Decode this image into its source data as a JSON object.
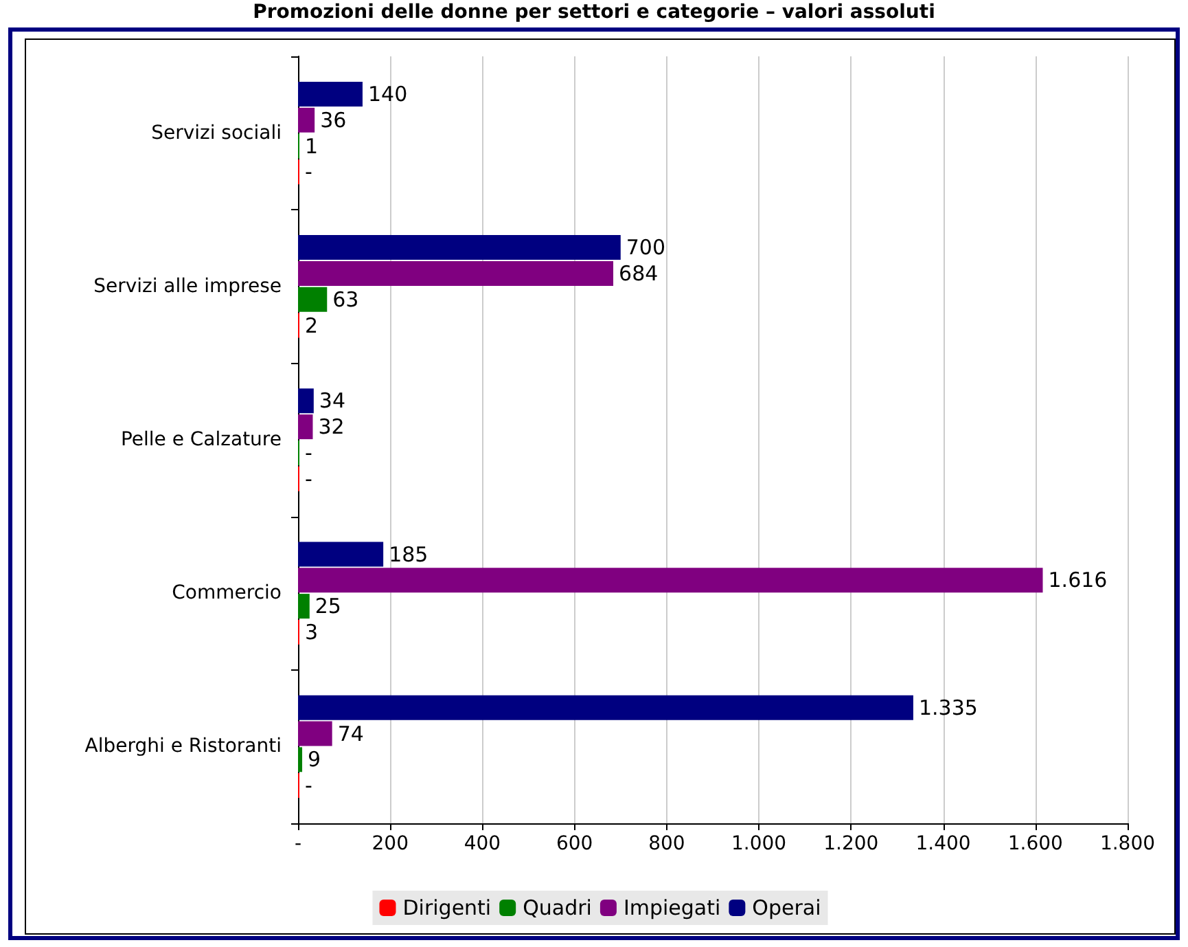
{
  "chart_data": {
    "type": "bar",
    "orientation": "horizontal",
    "title": "Promozioni delle donne per settori e categorie – valori assoluti",
    "categories": [
      "Servizi sociali",
      "Servizi alle imprese",
      "Pelle e Calzature",
      "Commercio",
      "Alberghi e Ristoranti"
    ],
    "series": [
      {
        "name": "Operai",
        "color": "#000080",
        "values": [
          140,
          700,
          34,
          185,
          1335
        ],
        "value_labels": [
          "140",
          "700",
          "34",
          "185",
          "1.335"
        ]
      },
      {
        "name": "Impiegati",
        "color": "#800080",
        "values": [
          36,
          684,
          32,
          1616,
          74
        ],
        "value_labels": [
          "36",
          "684",
          "32",
          "1.616",
          "74"
        ]
      },
      {
        "name": "Quadri",
        "color": "#008000",
        "values": [
          1,
          63,
          0,
          25,
          9
        ],
        "value_labels": [
          "1",
          "63",
          "-",
          "25",
          "9"
        ]
      },
      {
        "name": "Dirigenti",
        "color": "#ff0000",
        "values": [
          0,
          2,
          0,
          3,
          0
        ],
        "value_labels": [
          "-",
          "2",
          "-",
          "3",
          "-"
        ]
      }
    ],
    "xlim": [
      0,
      1800
    ],
    "xticks": [
      {
        "value": 0,
        "label": "-"
      },
      200,
      400,
      600,
      800,
      {
        "value": 1000,
        "label": "1.000"
      },
      {
        "value": 1200,
        "label": "1.200"
      },
      {
        "value": 1400,
        "label": "1.400"
      },
      {
        "value": 1600,
        "label": "1.600"
      },
      {
        "value": 1800,
        "label": "1.800"
      }
    ],
    "grid": "x",
    "legend": "bottom"
  }
}
